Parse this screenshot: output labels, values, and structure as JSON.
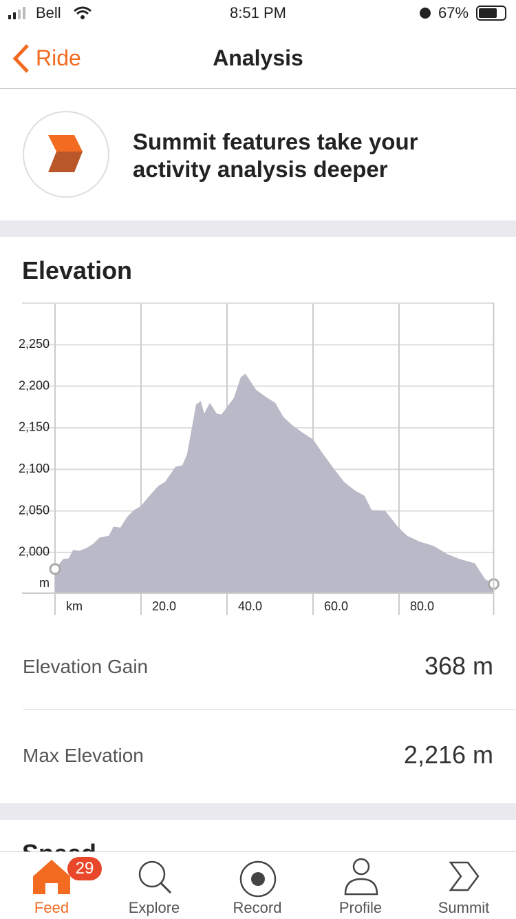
{
  "status_bar": {
    "carrier": "Bell",
    "time": "8:51 PM",
    "battery": "67%"
  },
  "nav": {
    "back": "Ride",
    "title": "Analysis"
  },
  "banner": {
    "text": "Summit features take your activity analysis deeper"
  },
  "section_title": "Elevation",
  "chart_data": {
    "type": "area",
    "color": "#b9b9c7",
    "y_unit": "m",
    "x": [
      0,
      1.9,
      3.2,
      4.2,
      5.6,
      7.2,
      8.8,
      10.4,
      12.5,
      13.6,
      15.2,
      16.8,
      18.4,
      20,
      21.6,
      24,
      25.6,
      28,
      29.6,
      30.7,
      32.8,
      33.9,
      34.7,
      36,
      37.6,
      38.7,
      40.3,
      41.6,
      43.2,
      44.3,
      46.7,
      48.8,
      51.2,
      53.1,
      55.2,
      57.6,
      60,
      62.4,
      64.8,
      67.2,
      69.6,
      72,
      73.6,
      76.8,
      79.7,
      81.9,
      84.8,
      88,
      91.2,
      94.1,
      97.6,
      100,
      102
    ],
    "values": [
      1980,
      1992,
      1993,
      2003,
      2002,
      2005,
      2010,
      2018,
      2020,
      2031,
      2030,
      2043,
      2051,
      2056,
      2066,
      2080,
      2085,
      2103,
      2105,
      2118,
      2178,
      2182,
      2167,
      2180,
      2167,
      2166,
      2177,
      2186,
      2211,
      2215,
      2196,
      2188,
      2180,
      2163,
      2153,
      2144,
      2136,
      2118,
      2101,
      2085,
      2075,
      2068,
      2051,
      2050,
      2031,
      2020,
      2013,
      2008,
      1998,
      1992,
      1987,
      1968,
      1962
    ],
    "xlim": [
      0,
      102
    ],
    "ylim": [
      1951,
      2300
    ],
    "xticks": [
      {
        "value": 0,
        "label": "km"
      },
      {
        "value": 20,
        "label": "20.0"
      },
      {
        "value": 40,
        "label": "40.0"
      },
      {
        "value": 60,
        "label": "60.0"
      },
      {
        "value": 80,
        "label": "80.0"
      }
    ],
    "yticks": [
      {
        "value": 2000,
        "label": "2,000"
      },
      {
        "value": 2050,
        "label": "2,050"
      },
      {
        "value": 2100,
        "label": "2,100"
      },
      {
        "value": 2150,
        "label": "2,150"
      },
      {
        "value": 2200,
        "label": "2,200"
      },
      {
        "value": 2250,
        "label": "2,250"
      }
    ],
    "grid": true
  },
  "stats": [
    {
      "label": "Elevation Gain",
      "value": "368 m"
    },
    {
      "label": "Max Elevation",
      "value": "2,216 m"
    }
  ],
  "next_section": "Speed",
  "tabs": [
    {
      "label": "Feed",
      "badge": "29"
    },
    {
      "label": "Explore"
    },
    {
      "label": "Record"
    },
    {
      "label": "Profile"
    },
    {
      "label": "Summit"
    }
  ]
}
